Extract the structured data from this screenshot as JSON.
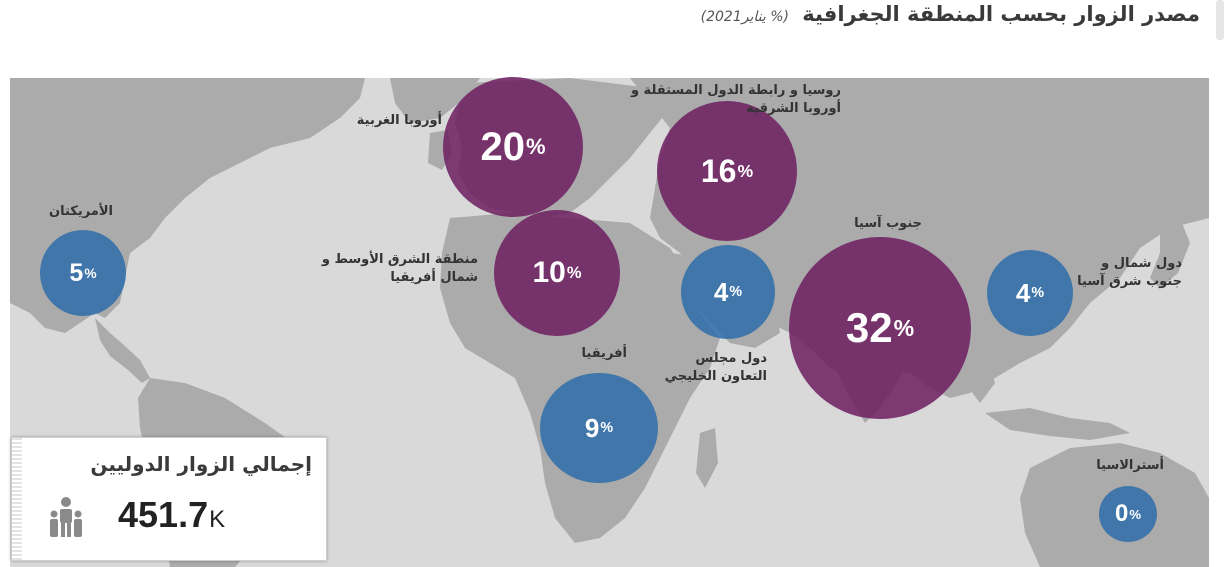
{
  "header": {
    "title": "مصدر الزوار بحسب المنطقة الجغرافية",
    "subtitle": "(%  يناير2021)"
  },
  "regions": [
    {
      "id": "americas",
      "label": "الأمريكتان",
      "value": "5",
      "unit": "%",
      "color": "#2f6eaa"
    },
    {
      "id": "western-europe",
      "label": "أوروبا الغربية",
      "value": "20",
      "unit": "%",
      "color": "#6e1e5f"
    },
    {
      "id": "russia-cis",
      "label": "روسيا و رابطة الدول المستقلة و أوروبا الشرقية",
      "label_line1": "روسيا و رابطة الدول المستقلة و",
      "label_line2": "أوروبا الشرقية",
      "value": "16",
      "unit": "%",
      "color": "#6e1e5f"
    },
    {
      "id": "mena",
      "label": "منطقة الشرق الأوسط و شمال أفريقيا",
      "label_line1": "منطقة الشرق الأوسط و",
      "label_line2": "شمال أفريقيا",
      "value": "10",
      "unit": "%",
      "color": "#6e1e5f"
    },
    {
      "id": "gcc",
      "label": "دول مجلس التعاون الخليجي",
      "label_line1": "دول مجلس",
      "label_line2": "التعاون الخليجي",
      "value": "4",
      "unit": "%",
      "color": "#2f6eaa"
    },
    {
      "id": "south-asia",
      "label": "جنوب آسيا",
      "value": "32",
      "unit": "%",
      "color": "#6e1e5f"
    },
    {
      "id": "ne-se-asia",
      "label": "دول شمال و جنوب شرق آسيا",
      "label_line1": "دول شمال و",
      "label_line2": "جنوب شرق آسيا",
      "value": "4",
      "unit": "%",
      "color": "#2f6eaa"
    },
    {
      "id": "africa",
      "label": "أفريقيا",
      "value": "9",
      "unit": "%",
      "color": "#2f6eaa"
    },
    {
      "id": "australasia",
      "label": "أسترالاسيا",
      "value": "0",
      "unit": "%",
      "color": "#2f6eaa"
    }
  ],
  "total": {
    "title": "إجمالي الزوار الدوليين",
    "value": "451.7",
    "unit": "K",
    "icon": "people-icon"
  },
  "colors": {
    "purple": "#6e1e5f",
    "blue": "#2f6eaa",
    "map_background": "#d9d9d9",
    "land": "#ababab"
  }
}
